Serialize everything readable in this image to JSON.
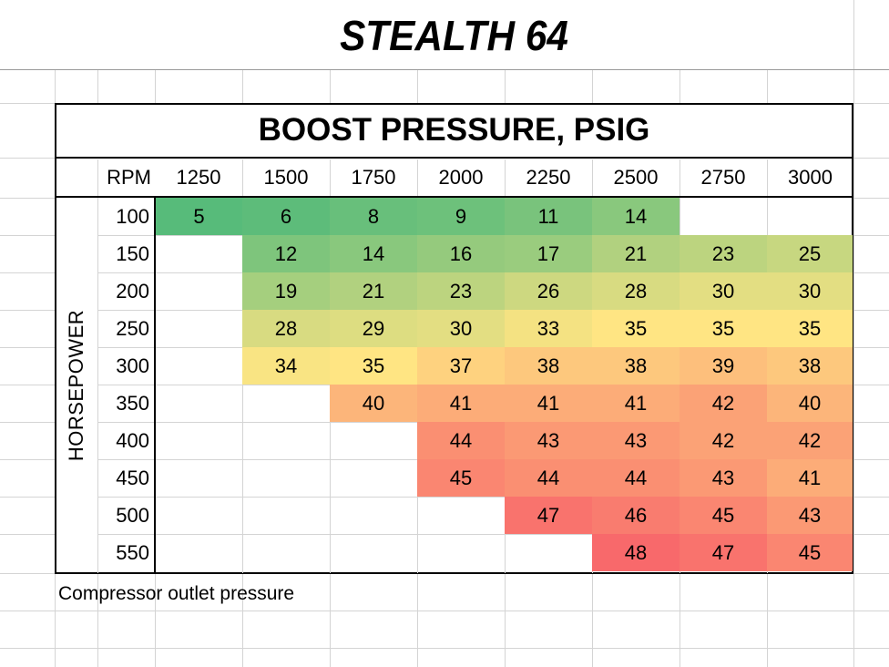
{
  "title": "STEALTH 64",
  "table": {
    "heading": "BOOST PRESSURE, PSIG",
    "row_axis_label": "HORSEPOWER",
    "col_axis_label": "RPM",
    "rpm": [
      "1250",
      "1500",
      "1750",
      "2000",
      "2250",
      "2500",
      "2750",
      "3000"
    ],
    "horsepower": [
      "100",
      "150",
      "200",
      "250",
      "300",
      "350",
      "400",
      "450",
      "500",
      "550"
    ],
    "values": [
      [
        "5",
        "6",
        "8",
        "9",
        "11",
        "14",
        "",
        ""
      ],
      [
        "",
        "12",
        "14",
        "16",
        "17",
        "21",
        "23",
        "25"
      ],
      [
        "",
        "19",
        "21",
        "23",
        "26",
        "28",
        "30",
        "30"
      ],
      [
        "",
        "28",
        "29",
        "30",
        "33",
        "35",
        "35",
        "35"
      ],
      [
        "",
        "34",
        "35",
        "37",
        "38",
        "38",
        "39",
        "38"
      ],
      [
        "",
        "",
        "40",
        "41",
        "41",
        "41",
        "42",
        "40"
      ],
      [
        "",
        "",
        "",
        "44",
        "43",
        "43",
        "42",
        "42"
      ],
      [
        "",
        "",
        "",
        "45",
        "44",
        "44",
        "43",
        "41"
      ],
      [
        "",
        "",
        "",
        "",
        "47",
        "46",
        "45",
        "43"
      ],
      [
        "",
        "",
        "",
        "",
        "",
        "48",
        "47",
        "45"
      ]
    ]
  },
  "footnote": "Compressor outlet pressure",
  "color_scale": {
    "min": "#57BB7A",
    "mid": "#FFE583",
    "max": "#F8696B",
    "min_value": 5,
    "mid_value": 35,
    "max_value": 48
  },
  "chart_data": {
    "type": "heatmap",
    "title": "STEALTH 64",
    "subtitle": "BOOST PRESSURE, PSIG",
    "xlabel": "RPM",
    "ylabel": "HORSEPOWER",
    "x": [
      1250,
      1500,
      1750,
      2000,
      2250,
      2500,
      2750,
      3000
    ],
    "y": [
      100,
      150,
      200,
      250,
      300,
      350,
      400,
      450,
      500,
      550
    ],
    "z": [
      [
        5,
        6,
        8,
        9,
        11,
        14,
        null,
        null
      ],
      [
        null,
        12,
        14,
        16,
        17,
        21,
        23,
        25
      ],
      [
        null,
        19,
        21,
        23,
        26,
        28,
        30,
        30
      ],
      [
        null,
        28,
        29,
        30,
        33,
        35,
        35,
        35
      ],
      [
        null,
        34,
        35,
        37,
        38,
        38,
        39,
        38
      ],
      [
        null,
        null,
        40,
        41,
        41,
        41,
        42,
        40
      ],
      [
        null,
        null,
        null,
        44,
        43,
        43,
        42,
        42
      ],
      [
        null,
        null,
        null,
        45,
        44,
        44,
        43,
        41
      ],
      [
        null,
        null,
        null,
        null,
        47,
        46,
        45,
        43
      ],
      [
        null,
        null,
        null,
        null,
        null,
        48,
        47,
        45
      ]
    ],
    "note": "Compressor outlet pressure"
  }
}
